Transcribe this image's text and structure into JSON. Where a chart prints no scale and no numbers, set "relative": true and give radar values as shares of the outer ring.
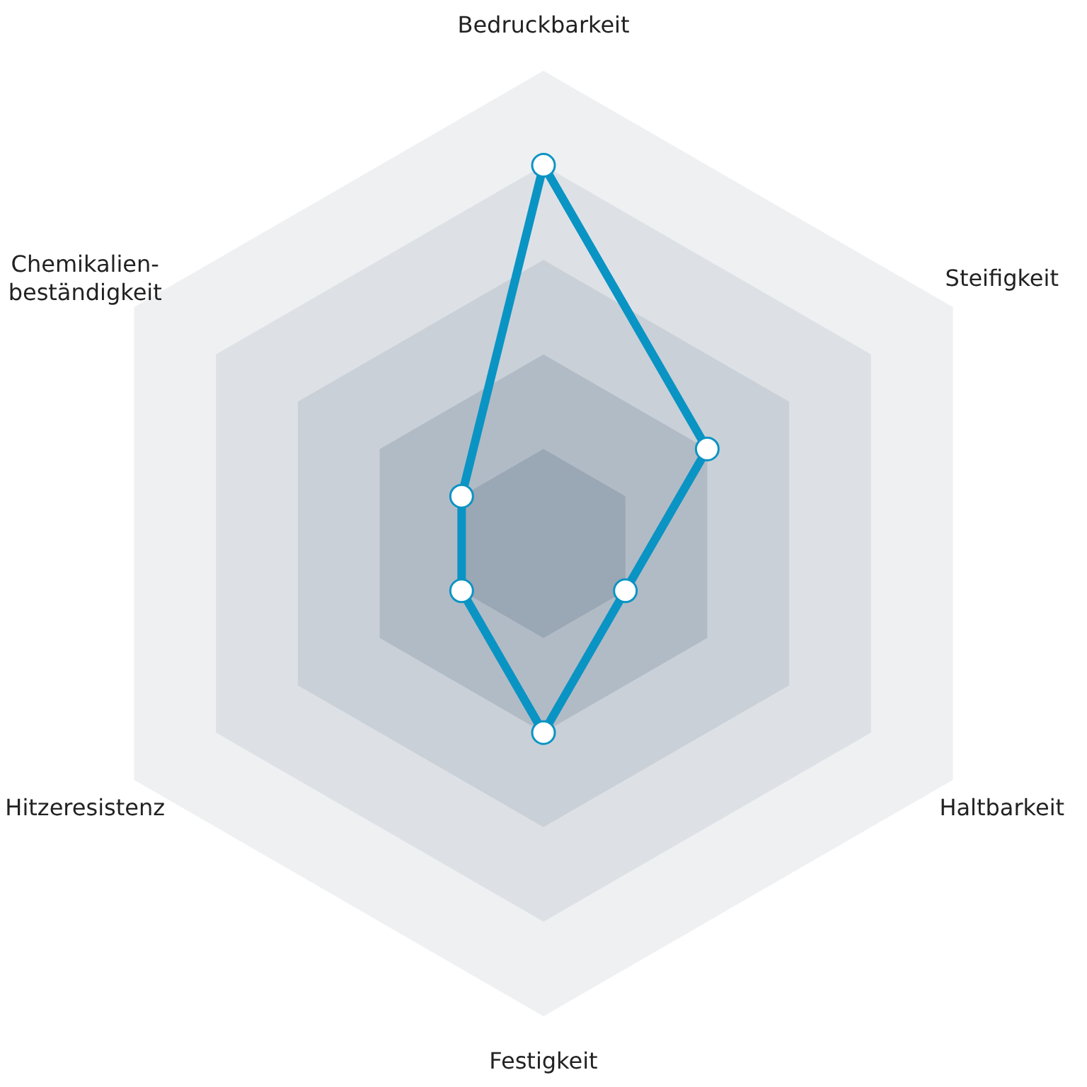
{
  "chart_data": {
    "type": "radar",
    "relative": true,
    "grid": true,
    "marker": "circle",
    "categories": [
      "Bedruckbarkeit",
      "Steifigkeit",
      "Haltbarkeit",
      "Festigkeit",
      "Hitzeresistenz",
      "Chemikalien-\nbeständigkeit"
    ],
    "series": [
      {
        "color": "#0a94c4",
        "values": [
          0.8,
          0.4,
          0.2,
          0.4,
          0.2,
          0.2
        ]
      }
    ]
  }
}
